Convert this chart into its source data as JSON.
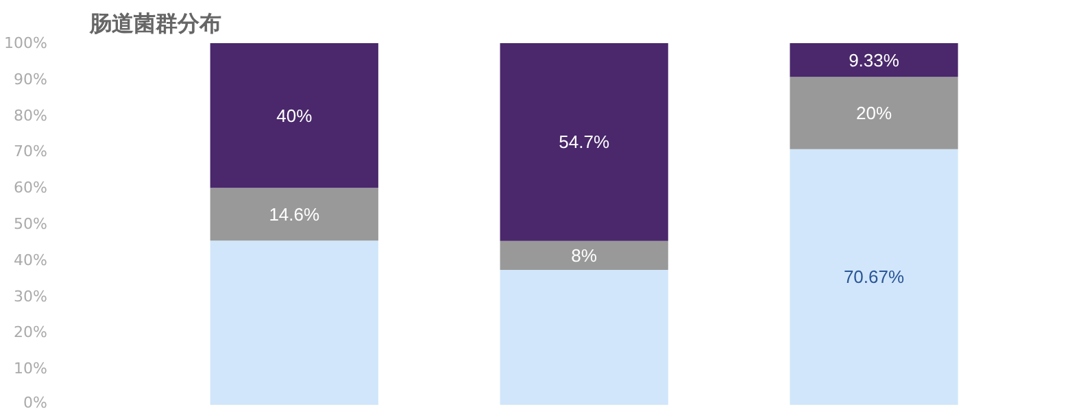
{
  "chart_data": {
    "type": "bar",
    "title": "肠道菌群分布",
    "categories": [
      null,
      null,
      null
    ],
    "stacked": true,
    "series": [
      {
        "color": "#d1e6fa",
        "values": [
          45.4,
          37.3,
          70.67
        ],
        "value_labels": [
          null,
          null,
          "70.67%"
        ]
      },
      {
        "color": "#999999",
        "values": [
          14.6,
          8,
          20
        ],
        "value_labels": [
          "14.6%",
          "8%",
          "20%"
        ]
      },
      {
        "color": "#4a286b",
        "values": [
          40,
          54.7,
          9.33
        ],
        "value_labels": [
          "40%",
          "54.7%",
          "9.33%"
        ]
      }
    ],
    "ylim": [
      0,
      100
    ],
    "yticks": [
      {
        "value": 0,
        "label": "0%"
      },
      {
        "value": 10,
        "label": "10%"
      },
      {
        "value": 20,
        "label": "20%"
      },
      {
        "value": 30,
        "label": "30%"
      },
      {
        "value": 40,
        "label": "40%"
      },
      {
        "value": 50,
        "label": "50%"
      },
      {
        "value": 60,
        "label": "60%"
      },
      {
        "value": 70,
        "label": "70%"
      },
      {
        "value": 80,
        "label": "80%"
      },
      {
        "value": 90,
        "label": "90%"
      },
      {
        "value": 100,
        "label": "100%"
      }
    ],
    "grid": false,
    "tick_labels": "y"
  }
}
